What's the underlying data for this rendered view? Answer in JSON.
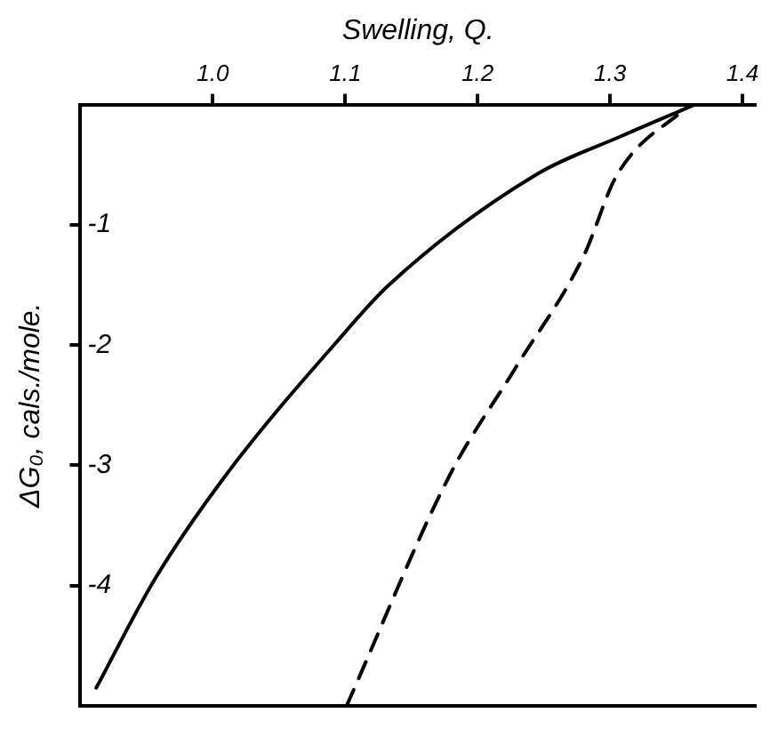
{
  "chart_data": {
    "type": "line",
    "xlabel": "Swelling, Q.",
    "ylabel": "ΔG₀, cals./mole.",
    "xlim": [
      0.9,
      1.41
    ],
    "ylim": [
      -5,
      0
    ],
    "xticks": [
      {
        "value": 1.0,
        "label": "1.0"
      },
      1.1,
      1.2,
      1.3,
      1.4
    ],
    "yticks": [
      -1,
      -2,
      -3,
      -4
    ],
    "grid": false,
    "legend": false,
    "marker": "none",
    "series": [
      {
        "color": "#000000",
        "line_style": "solid",
        "x": [
          0.912,
          0.956,
          1.012,
          1.093,
          1.133,
          1.243,
          1.309,
          1.362
        ],
        "values": [
          -4.85,
          -3.95,
          -3.05,
          -1.98,
          -1.5,
          -0.59,
          -0.26,
          -0.01
        ]
      },
      {
        "color": "#000000",
        "line_style": "dashed",
        "x": [
          1.101,
          1.179,
          1.228,
          1.28,
          1.305,
          1.36
        ],
        "values": [
          -5.0,
          -3.08,
          -2.2,
          -1.26,
          -0.59,
          0
        ]
      }
    ]
  }
}
